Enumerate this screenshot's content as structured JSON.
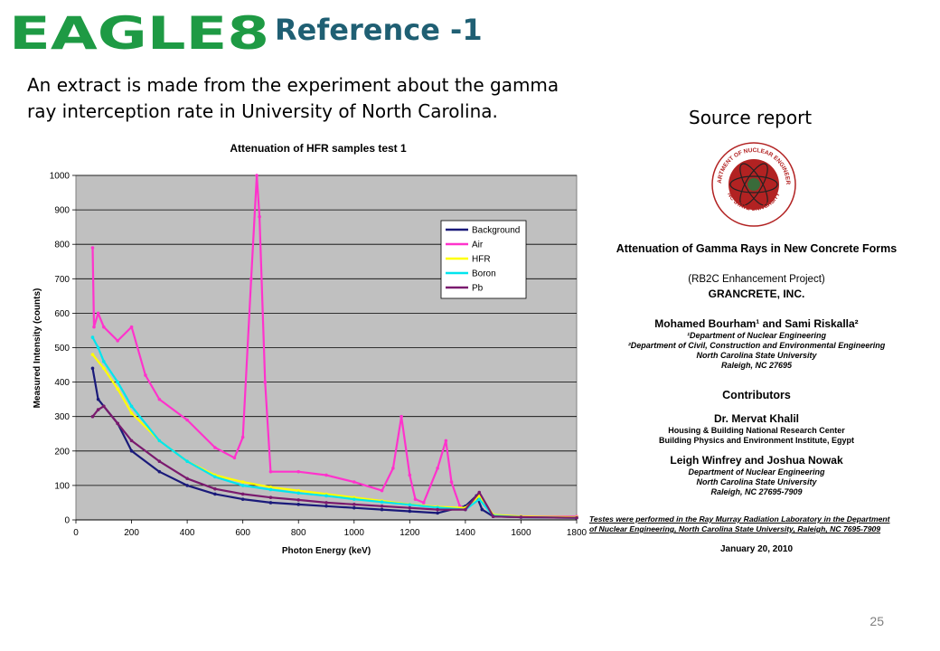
{
  "header": {
    "logo_text": "EAGLE8",
    "title": "Reference -1"
  },
  "intro_text": "An extract is made from the experiment about the gamma ray interception rate in University of North Carolina.",
  "source_label": "Source report",
  "chart_data": {
    "type": "line",
    "title": "Attenuation of HFR samples test 1",
    "xlabel": "Photon Energy (keV)",
    "ylabel": "Measured Intensity (counts)",
    "xlim": [
      0,
      1800
    ],
    "ylim": [
      0,
      1000
    ],
    "xticks": [
      0,
      200,
      400,
      600,
      800,
      1000,
      1200,
      1400,
      1600,
      1800
    ],
    "yticks": [
      0,
      100,
      200,
      300,
      400,
      500,
      600,
      700,
      800,
      900,
      1000
    ],
    "grid": "horizontal",
    "legend_position": "top-right",
    "series": [
      {
        "name": "Background",
        "color": "#1a1a7a",
        "marker": "dot",
        "x": [
          60,
          80,
          100,
          150,
          200,
          300,
          400,
          500,
          600,
          700,
          800,
          900,
          1000,
          1100,
          1200,
          1300,
          1400,
          1440,
          1460,
          1500,
          1600,
          1800
        ],
        "y": [
          440,
          350,
          330,
          280,
          200,
          140,
          100,
          75,
          60,
          50,
          45,
          40,
          35,
          30,
          25,
          20,
          40,
          70,
          30,
          10,
          8,
          6
        ]
      },
      {
        "name": "Air",
        "color": "#ff33cc",
        "marker": "dot",
        "x": [
          60,
          65,
          80,
          100,
          150,
          200,
          250,
          300,
          400,
          500,
          570,
          600,
          630,
          650,
          660,
          680,
          700,
          800,
          900,
          1000,
          1100,
          1140,
          1170,
          1200,
          1220,
          1250,
          1300,
          1330,
          1350,
          1380,
          1400,
          1450,
          1500,
          1600,
          1800
        ],
        "y": [
          790,
          560,
          600,
          560,
          520,
          560,
          420,
          350,
          290,
          210,
          180,
          240,
          700,
          1000,
          880,
          400,
          140,
          140,
          130,
          110,
          85,
          150,
          300,
          130,
          60,
          50,
          150,
          230,
          110,
          40,
          30,
          75,
          12,
          10,
          10
        ]
      },
      {
        "name": "HFR",
        "color": "#ffff00",
        "marker": "dot",
        "x": [
          60,
          100,
          150,
          200,
          300,
          400,
          500,
          600,
          700,
          800,
          900,
          1000,
          1100,
          1200,
          1300,
          1400,
          1450,
          1500,
          1600,
          1800
        ],
        "y": [
          480,
          440,
          380,
          310,
          230,
          170,
          130,
          110,
          95,
          85,
          75,
          65,
          55,
          45,
          38,
          35,
          70,
          15,
          10,
          8
        ]
      },
      {
        "name": "Boron",
        "color": "#00e5ee",
        "marker": "x",
        "x": [
          60,
          80,
          100,
          150,
          200,
          300,
          400,
          500,
          600,
          700,
          800,
          900,
          1000,
          1100,
          1200,
          1300,
          1400,
          1450,
          1500,
          1600,
          1800
        ],
        "y": [
          530,
          500,
          460,
          400,
          330,
          230,
          170,
          125,
          100,
          88,
          78,
          70,
          60,
          52,
          44,
          36,
          30,
          60,
          12,
          8,
          6
        ]
      },
      {
        "name": "Pb",
        "color": "#7a1a6e",
        "marker": "dot",
        "x": [
          60,
          80,
          100,
          150,
          200,
          300,
          400,
          500,
          600,
          700,
          800,
          900,
          1000,
          1100,
          1200,
          1300,
          1400,
          1450,
          1500,
          1600,
          1800
        ],
        "y": [
          300,
          320,
          330,
          280,
          230,
          170,
          120,
          90,
          75,
          65,
          58,
          50,
          45,
          40,
          35,
          30,
          30,
          80,
          10,
          8,
          6
        ]
      }
    ]
  },
  "report": {
    "title": "Attenuation of Gamma Rays in New Concrete Forms",
    "project": "(RB2C Enhancement Project)",
    "company": "GRANCRETE, INC.",
    "authors": "Mohamed Bourham¹ and Sami Riskalla²",
    "affiliation1": "¹Department of Nuclear Engineering",
    "affiliation2": "²Department of Civil, Construction and Environmental Engineering",
    "university": "North Carolina State University",
    "city": "Raleigh, NC 27695",
    "contributors_heading": "Contributors",
    "contributor1_name": "Dr. Mervat Khalil",
    "contributor1_org1": "Housing & Building National Research Center",
    "contributor1_org2": "Building Physics and Environment Institute, Egypt",
    "contributor2_name": "Leigh Winfrey and Joshua Nowak",
    "contributor2_org1": "Department of Nuclear Engineering",
    "contributor2_org2": "North Carolina State University",
    "contributor2_city": "Raleigh, NC 27695-7909",
    "tested_line1": "Testes were performed in the Ray Murray Radiation Laboratory in the Department",
    "tested_line2": "of Nuclear Engineering, North Carolina State University, Raleigh, NC 7695-7909",
    "date": "January 20, 2010",
    "seal_text_top": "DEPARTMENT OF NUCLEAR ENGINEERING",
    "seal_text_bottom": "NC STATE UNIVERSITY"
  },
  "page_number": "25"
}
